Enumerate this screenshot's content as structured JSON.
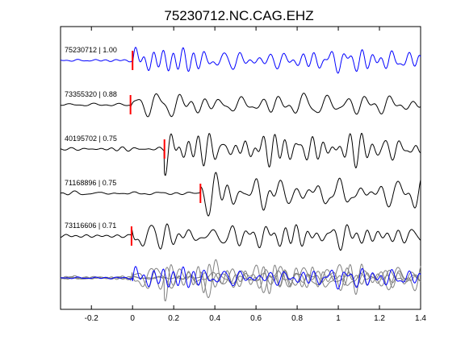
{
  "chart_data": {
    "type": "line",
    "title": "75230712.NC.CAG.EHZ",
    "xlabel": "",
    "ylabel": "",
    "xlim": [
      -0.35,
      1.4
    ],
    "xticks": [
      -0.2,
      0,
      0.2,
      0.4,
      0.6,
      0.8,
      1,
      1.2,
      1.4
    ],
    "xtick_labels": [
      "-0.2",
      "0",
      "0.2",
      "0.4",
      "0.6",
      "0.8",
      "1",
      "1.2",
      "1.4"
    ],
    "grid": false,
    "legend": "none",
    "colors": {
      "reference_trace": "#0000ff",
      "similar_trace": "#000000",
      "overlay_trace": "#808080",
      "pick_marker": "#ff0000",
      "axes": "#000000"
    },
    "traces": [
      {
        "label": "75230712 | 1.00",
        "pick_time": 0.0,
        "color": "#0000ff"
      },
      {
        "label": "73355320 | 0.88",
        "pick_time": -0.01,
        "color": "#000000"
      },
      {
        "label": "40195702 | 0.75",
        "pick_time": 0.155,
        "color": "#000000"
      },
      {
        "label": "71168896 | 0.75",
        "pick_time": 0.33,
        "color": "#000000"
      },
      {
        "label": "73116606 | 0.71",
        "pick_time": -0.005,
        "color": "#000000"
      }
    ],
    "overlay": {
      "note_visible": false,
      "trace_count": 5
    }
  }
}
